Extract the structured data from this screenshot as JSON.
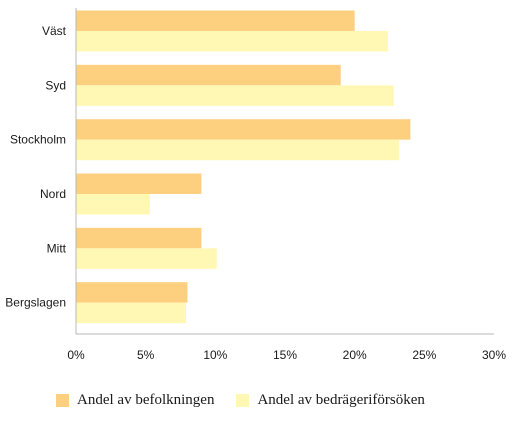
{
  "chart_data": {
    "type": "bar",
    "orientation": "horizontal",
    "categories": [
      "Väst",
      "Syd",
      "Stockholm",
      "Nord",
      "Mitt",
      "Bergslagen"
    ],
    "series": [
      {
        "name": "Andel av befolkningen",
        "color": "#fdd07f",
        "values": [
          20,
          19,
          24,
          9,
          9,
          8
        ]
      },
      {
        "name": "Andel av bedrägeriförsöken",
        "color": "#fff8b4",
        "values": [
          22.4,
          22.8,
          23.2,
          5.3,
          10.1,
          7.9
        ]
      }
    ],
    "x_ticks": [
      "0%",
      "5%",
      "10%",
      "15%",
      "20%",
      "25%",
      "30%"
    ],
    "xlim": [
      0,
      30
    ],
    "grid": false,
    "legend_position": "bottom"
  }
}
